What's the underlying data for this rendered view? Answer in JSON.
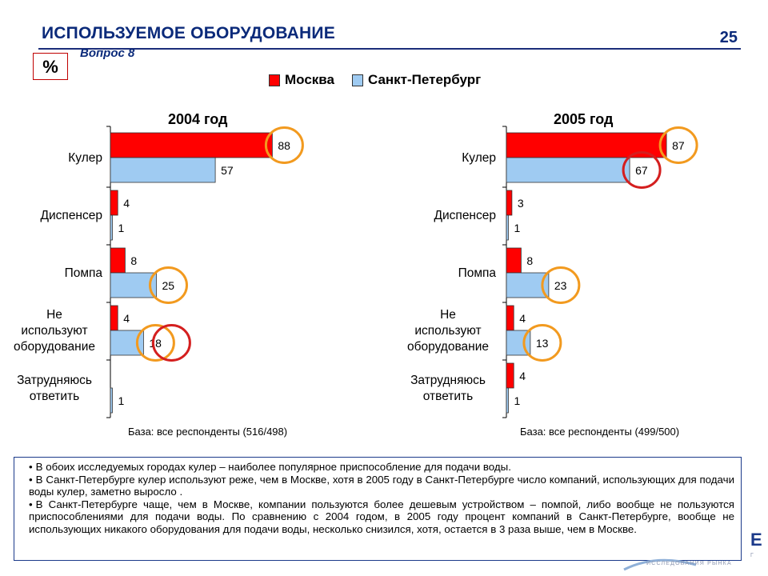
{
  "header": {
    "title": "ИСПОЛЬЗУЕМОЕ ОБОРУДОВАНИЕ",
    "page_number": "25",
    "subtitle": "Вопрос 8",
    "unit": "%"
  },
  "legend": {
    "moscow": "Москва",
    "spb": "Санкт-Петербург"
  },
  "colors": {
    "moscow": "#ff0000",
    "spb": "#9fcbf2",
    "circle_orange": "#f29a1f",
    "circle_red": "#d41f1f"
  },
  "chart_data": [
    {
      "type": "bar",
      "orientation": "horizontal",
      "title": "2004 год",
      "categories": [
        "Кулер",
        "Диспенсер",
        "Помпа",
        "Не используют оборудование",
        "Затрудняюсь ответить"
      ],
      "series": [
        {
          "name": "Москва",
          "values": [
            88,
            4,
            8,
            4,
            null
          ]
        },
        {
          "name": "Санкт-Петербург",
          "values": [
            57,
            1,
            25,
            18,
            1
          ]
        }
      ],
      "xlim": [
        0,
        100
      ],
      "note": "База: все респонденты (516/498)"
    },
    {
      "type": "bar",
      "orientation": "horizontal",
      "title": "2005 год",
      "categories": [
        "Кулер",
        "Диспенсер",
        "Помпа",
        "Не используют оборудование",
        "Затрудняюсь ответить"
      ],
      "series": [
        {
          "name": "Москва",
          "values": [
            87,
            3,
            8,
            4,
            4
          ]
        },
        {
          "name": "Санкт-Петербург",
          "values": [
            67,
            1,
            23,
            13,
            1
          ]
        }
      ],
      "xlim": [
        0,
        100
      ],
      "note": "База: все респонденты (499/500)"
    }
  ],
  "bullets": [
    "В обоих исследуемых городах кулер – наиболее популярное приспособление для подачи воды.",
    "В Санкт-Петербурге кулер используют реже, чем в Москве, хотя в 2005 году в Санкт-Петербурге число компаний, использующих для подачи воды кулер, заметно выросло .",
    "В Санкт-Петербурге чаще, чем в Москве, компании пользуются более дешевым устройством – помпой, либо вообще не пользуются приспособлениями для подачи воды. По сравнению с 2004 годом, в 2005 году процент компаний в Санкт-Петербурге, вообще не использующих никакого оборудования для подачи воды, несколько снизился, хотя, остается в 3 раза выше, чем в Москве."
  ],
  "logo": {
    "letter": "Е",
    "small_text": "Г",
    "tagline": "ИССЛЕДОВАНИЯ РЫНКА"
  }
}
